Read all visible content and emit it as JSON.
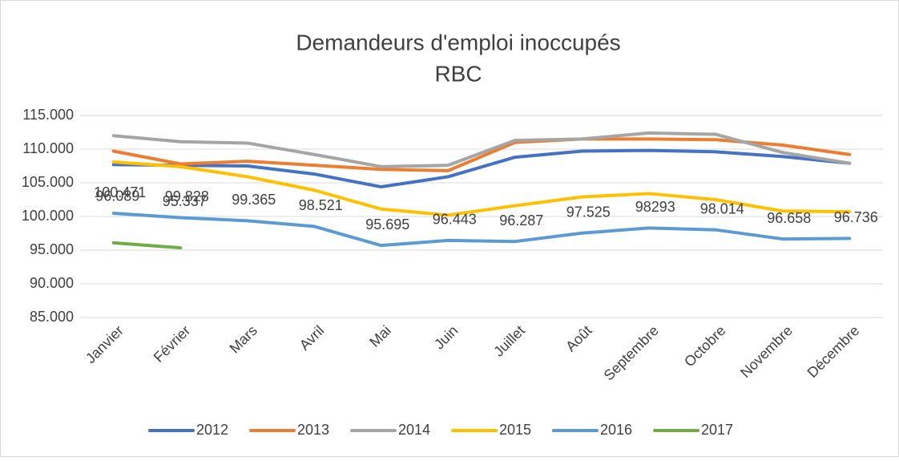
{
  "chart_data": {
    "type": "line",
    "title": "Demandeurs d'emploi inoccupés",
    "subtitle": "RBC",
    "categories": [
      "Janvier",
      "Février",
      "Mars",
      "Avril",
      "Mai",
      "Juin",
      "Juillet",
      "Août",
      "Septembre",
      "Octobre",
      "Novembre",
      "Décembre"
    ],
    "series": [
      {
        "name": "2012",
        "color": "#4472c4",
        "values": [
          107700,
          107600,
          107500,
          106300,
          104400,
          105900,
          108800,
          109700,
          109800,
          109600,
          108900,
          107900
        ]
      },
      {
        "name": "2013",
        "color": "#ed7d31",
        "values": [
          109700,
          107800,
          108200,
          107600,
          107000,
          106800,
          111000,
          111500,
          111500,
          111400,
          110600,
          109200
        ]
      },
      {
        "name": "2014",
        "color": "#a5a5a5",
        "values": [
          112000,
          111100,
          110900,
          109200,
          107400,
          107600,
          111300,
          111500,
          112400,
          112200,
          109500,
          107900
        ]
      },
      {
        "name": "2015",
        "color": "#ffc000",
        "values": [
          108100,
          107400,
          105900,
          103900,
          101100,
          100200,
          101600,
          102900,
          103400,
          102500,
          100800,
          100700
        ]
      },
      {
        "name": "2016",
        "color": "#5b9bd5",
        "values": [
          100471,
          99828,
          99365,
          98521,
          95695,
          96443,
          96287,
          97525,
          98293,
          98014,
          96658,
          96736
        ],
        "value_labels": [
          "100.471",
          "99.828",
          "99.365",
          "98.521",
          "95.695",
          "96.443",
          "96.287",
          "97.525",
          "98293",
          "98.014",
          "96.658",
          "96.736"
        ]
      },
      {
        "name": "2017",
        "color": "#70ad47",
        "values": [
          96089,
          95337,
          null,
          null,
          null,
          null,
          null,
          null,
          null,
          null,
          null,
          null
        ],
        "value_labels": [
          "96.089",
          "95.337",
          null,
          null,
          null,
          null,
          null,
          null,
          null,
          null,
          null,
          null
        ]
      }
    ],
    "ylim": [
      85000,
      115000
    ],
    "yticks": [
      {
        "value": 85000,
        "label": "85.000"
      },
      {
        "value": 90000,
        "label": "90.000"
      },
      {
        "value": 95000,
        "label": "95.000"
      },
      {
        "value": 100000,
        "label": "100.000"
      },
      {
        "value": 105000,
        "label": "105.000"
      },
      {
        "value": 110000,
        "label": "110.000"
      },
      {
        "value": 115000,
        "label": "115.000"
      }
    ],
    "grid": true,
    "legend": "bottom"
  }
}
